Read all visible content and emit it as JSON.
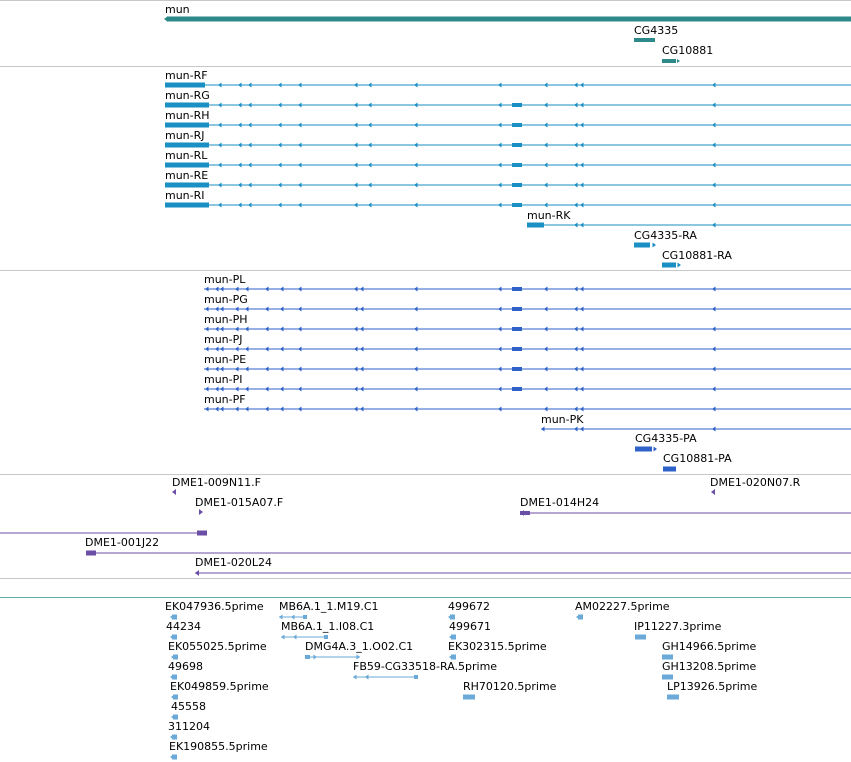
{
  "colors": {
    "gene": "#2e8a8a",
    "transcript": "#1a8fc4",
    "protein": "#2f62c8",
    "clone": "#6b4fa6",
    "est": "#6aa9d8",
    "divider": "#c8c8c8",
    "divider_accent": "#5ab0b0"
  },
  "tracks": {
    "genes": {
      "items": [
        {
          "label": "mun"
        },
        {
          "label": "CG4335"
        },
        {
          "label": "CG10881"
        }
      ]
    },
    "transcripts": {
      "items": [
        {
          "label": "mun-RF"
        },
        {
          "label": "mun-RG"
        },
        {
          "label": "mun-RH"
        },
        {
          "label": "mun-RJ"
        },
        {
          "label": "mun-RL"
        },
        {
          "label": "mun-RE"
        },
        {
          "label": "mun-RI"
        },
        {
          "label": "mun-RK"
        },
        {
          "label": "CG4335-RA"
        },
        {
          "label": "CG10881-RA"
        }
      ]
    },
    "proteins": {
      "items": [
        {
          "label": "mun-PL"
        },
        {
          "label": "mun-PG"
        },
        {
          "label": "mun-PH"
        },
        {
          "label": "mun-PJ"
        },
        {
          "label": "mun-PE"
        },
        {
          "label": "mun-PI"
        },
        {
          "label": "mun-PF"
        },
        {
          "label": "mun-PK"
        },
        {
          "label": "CG4335-PA"
        },
        {
          "label": "CG10881-PA"
        }
      ]
    },
    "clones": {
      "items": [
        {
          "label": "DME1-009N11.F"
        },
        {
          "label": "DME1-020N07.R"
        },
        {
          "label": "DME1-015A07.F"
        },
        {
          "label": "DME1-014H24"
        },
        {
          "label": "DME1-001J22"
        },
        {
          "label": "DME1-020L24"
        }
      ]
    },
    "ests": {
      "items": [
        {
          "label": "EK047936.5prime"
        },
        {
          "label": "MB6A.1_1.M19.C1"
        },
        {
          "label": "499672"
        },
        {
          "label": "AM02227.5prime"
        },
        {
          "label": "44234"
        },
        {
          "label": "MB6A.1_1.I08.C1"
        },
        {
          "label": "499671"
        },
        {
          "label": "IP11227.3prime"
        },
        {
          "label": "EK055025.5prime"
        },
        {
          "label": "DMG4A.3_1.O02.C1"
        },
        {
          "label": "EK302315.5prime"
        },
        {
          "label": "GH14966.5prime"
        },
        {
          "label": "49698"
        },
        {
          "label": "FB59-CG33518-RA.5prime"
        },
        {
          "label": "GH13208.5prime"
        },
        {
          "label": "EK049859.5prime"
        },
        {
          "label": "RH70120.5prime"
        },
        {
          "label": "LP13926.5prime"
        },
        {
          "label": "45558"
        },
        {
          "label": "311204"
        },
        {
          "label": "EK190855.5prime"
        }
      ]
    }
  }
}
